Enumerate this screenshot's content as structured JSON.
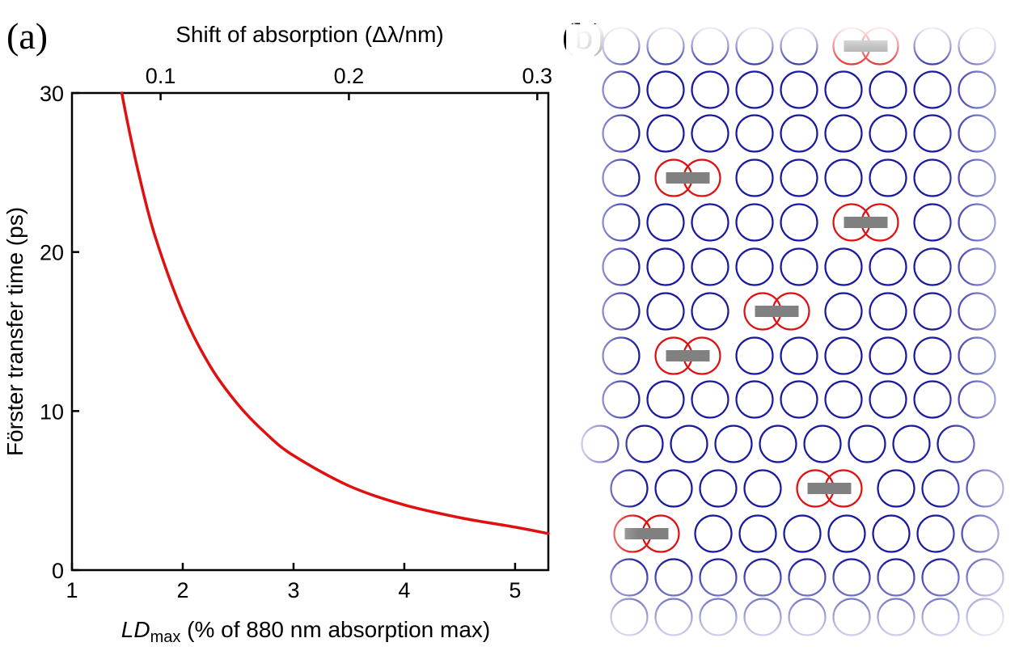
{
  "panels": {
    "a_label": "(a)",
    "b_label": "(b)"
  },
  "chart_data": {
    "type": "line",
    "xlabel_italic": "LD",
    "xlabel_sub": "max",
    "xlabel_rest": " (% of 880 nm absorption max)",
    "ylabel": "Förster transfer time (ps)",
    "top_xlabel": "Shift of absorption (Δλ/nm)",
    "xlim": [
      1,
      5.3
    ],
    "ylim": [
      0,
      30
    ],
    "xticks": [
      1,
      2,
      3,
      4,
      5
    ],
    "yticks": [
      0,
      10,
      20,
      30
    ],
    "top_ticks": [
      {
        "label": "0.1",
        "x": 1.8
      },
      {
        "label": "0.2",
        "x": 3.5
      },
      {
        "label": "0.3",
        "x": 5.2
      }
    ],
    "series": [
      {
        "color": "#e01010",
        "x": [
          1.45,
          1.5,
          1.6,
          1.75,
          2.0,
          2.25,
          2.5,
          2.75,
          3.0,
          3.5,
          4.0,
          4.5,
          5.0,
          5.3
        ],
        "y": [
          30.0,
          28.2,
          25.0,
          21.0,
          16.2,
          12.8,
          10.4,
          8.6,
          7.2,
          5.3,
          4.1,
          3.3,
          2.7,
          2.3
        ]
      }
    ]
  },
  "diagram": {
    "ring_color": "#1a1aa0",
    "dimer_color": "#e01010",
    "bar_color": "#808080"
  }
}
